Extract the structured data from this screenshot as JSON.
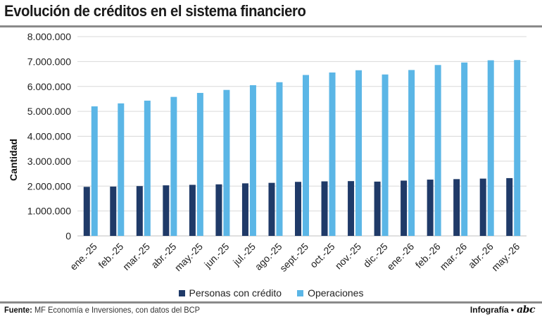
{
  "header": {
    "title": "Evolución de créditos en el sistema financiero"
  },
  "footer": {
    "source_label": "Fuente:",
    "source_text": "MF Economía e Inversiones, con datos del BCP",
    "credit_text": "Infografía •",
    "logo_text": "abc"
  },
  "colors": {
    "personas": "#1f3a68",
    "operaciones": "#5bb6e6",
    "grid": "#d9d9d9"
  },
  "chart_data": {
    "type": "bar",
    "title": "Evolución de créditos en el sistema financiero",
    "xlabel": "",
    "ylabel": "Cantidad",
    "ylim": [
      0,
      8000000
    ],
    "yticks": [
      "0",
      "1.000.000",
      "2.000.000",
      "3.000.000",
      "4.000.000",
      "5.000.000",
      "6.000.000",
      "7.000.000",
      "8.000.000"
    ],
    "grid": true,
    "legend_position": "bottom",
    "categories": [
      "ene.-25",
      "feb.-25",
      "mar.-25",
      "abr.-25",
      "may.-25",
      "jun.-25",
      "jul.-25",
      "ago.-25",
      "sept.-25",
      "oct.-25",
      "nov.-25",
      "dic.-25",
      "ene.-26",
      "feb.-26",
      "mar.-26",
      "abr.-26",
      "may.-26"
    ],
    "series": [
      {
        "name": "Personas con crédito",
        "values": [
          1970000,
          1980000,
          2000000,
          2030000,
          2050000,
          2070000,
          2110000,
          2130000,
          2170000,
          2190000,
          2200000,
          2180000,
          2220000,
          2260000,
          2280000,
          2300000,
          2320000
        ]
      },
      {
        "name": "Operaciones",
        "values": [
          5200000,
          5320000,
          5430000,
          5580000,
          5740000,
          5860000,
          6050000,
          6170000,
          6460000,
          6560000,
          6650000,
          6480000,
          6660000,
          6860000,
          6960000,
          7050000,
          7060000
        ]
      }
    ]
  }
}
